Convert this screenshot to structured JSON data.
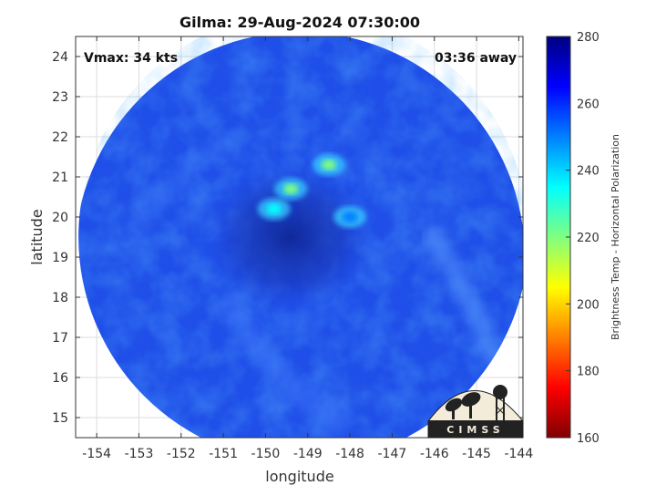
{
  "title": "Gilma: 29-Aug-2024 07:30:00",
  "vmax_label": "Vmax: 34 kts",
  "time_away_label": "03:36 away",
  "map": {
    "xlabel": "longitude",
    "ylabel": "latitude",
    "xlim": [
      -154.5,
      -143.9
    ],
    "ylim": [
      14.5,
      24.5
    ],
    "x_ticks": [
      -154,
      -153,
      -152,
      -151,
      -150,
      -149,
      -148,
      -147,
      -146,
      -145,
      -144
    ],
    "y_ticks": [
      15,
      16,
      17,
      18,
      19,
      20,
      21,
      22,
      23,
      24
    ],
    "grid": true,
    "swath_center": [
      -149.1,
      19.5
    ],
    "storm_center": [
      -149.2,
      19.8
    ],
    "warm_spots": [
      {
        "lon": -149.4,
        "lat": 20.7,
        "value": 218
      },
      {
        "lon": -148.5,
        "lat": 21.3,
        "value": 215
      },
      {
        "lon": -149.8,
        "lat": 20.2,
        "value": 240
      },
      {
        "lon": -148.0,
        "lat": 20.0,
        "value": 245
      }
    ]
  },
  "colorbar": {
    "label": "Brightness Temp - Horizontal Polarization",
    "min": 160,
    "max": 280,
    "ticks": [
      160,
      180,
      200,
      220,
      240,
      260,
      280
    ],
    "colormap": [
      "#800000",
      "#ff0000",
      "#ff8000",
      "#ffff00",
      "#80ff80",
      "#00ffff",
      "#0080ff",
      "#0000ff",
      "#000080"
    ]
  },
  "logo": {
    "text": "CIMSS"
  },
  "colors": {
    "swath_base": "#1f4fe8",
    "eye_dark": "#132ea6"
  }
}
